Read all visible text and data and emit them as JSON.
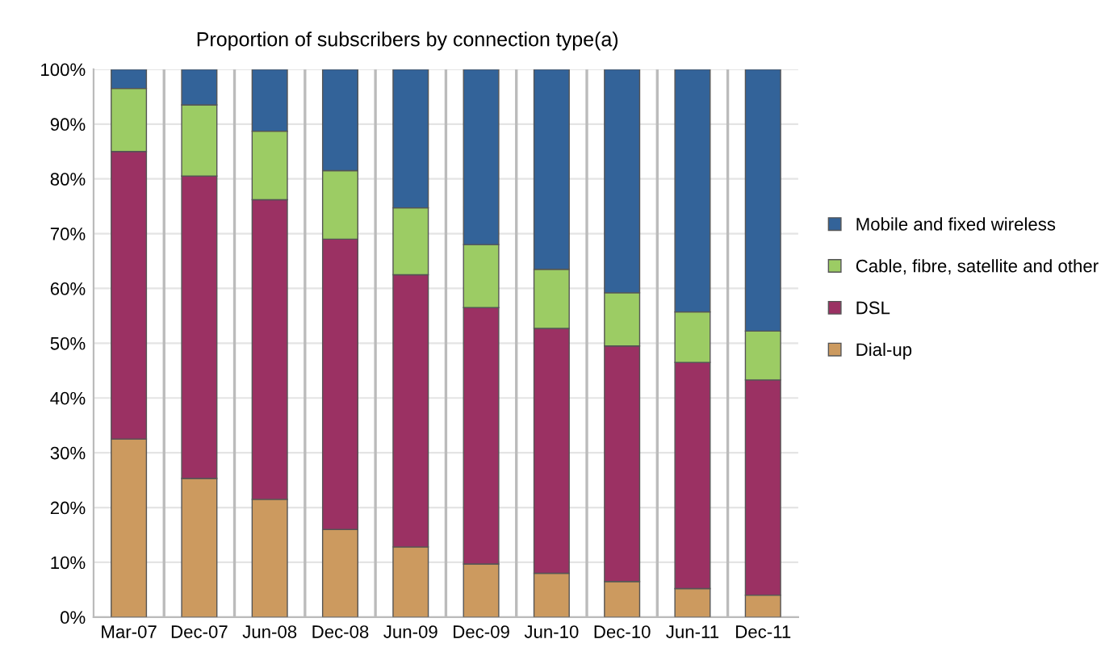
{
  "chart_data": {
    "type": "bar",
    "title": "Proportion of subscribers by connection type(a)",
    "stacked": true,
    "categories": [
      "Mar-07",
      "Dec-07",
      "Jun-08",
      "Dec-08",
      "Jun-09",
      "Dec-09",
      "Jun-10",
      "Dec-10",
      "Jun-11",
      "Dec-11"
    ],
    "series": [
      {
        "name": "Dial-up",
        "color": "#cc9a5f",
        "values": [
          32.5,
          25.3,
          21.5,
          16,
          12.8,
          9.7,
          8,
          6.5,
          5.2,
          4
        ]
      },
      {
        "name": "DSL",
        "color": "#9b3163",
        "values": [
          52.5,
          55.2,
          54.7,
          53,
          49.7,
          46.8,
          44.7,
          43,
          41.3,
          39.3
        ]
      },
      {
        "name": "Cable, fibre, satellite and other",
        "color": "#9ccc64",
        "values": [
          11.5,
          13,
          12.5,
          12.5,
          12.2,
          11.5,
          10.8,
          9.7,
          9.2,
          8.9
        ]
      },
      {
        "name": "Mobile and fixed wireless",
        "color": "#336399",
        "values": [
          3.5,
          6.5,
          11.3,
          18.5,
          25.3,
          32,
          36.5,
          40.8,
          44.3,
          47.8
        ]
      }
    ],
    "ylim": [
      0,
      100
    ],
    "yticks": [
      {
        "value": 0,
        "label": "0%"
      },
      {
        "value": 10,
        "label": "10%"
      },
      {
        "value": 20,
        "label": "20%"
      },
      {
        "value": 30,
        "label": "30%"
      },
      {
        "value": 40,
        "label": "40%"
      },
      {
        "value": 50,
        "label": "50%"
      },
      {
        "value": 60,
        "label": "60%"
      },
      {
        "value": 70,
        "label": "70%"
      },
      {
        "value": 80,
        "label": "80%"
      },
      {
        "value": 90,
        "label": "90%"
      },
      {
        "value": 100,
        "label": "100%"
      }
    ],
    "grid": "y",
    "legend": "right"
  }
}
